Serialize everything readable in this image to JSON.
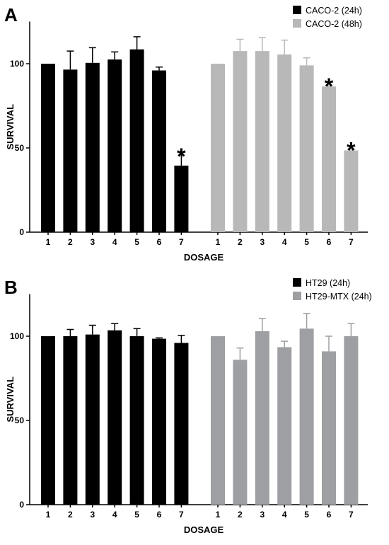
{
  "chart_data": [
    {
      "panel": "A",
      "type": "bar",
      "xlabel": "DOSAGE",
      "ylabel": "SURVIVAL",
      "ylim": [
        0,
        125
      ],
      "yticks": [
        0,
        50,
        100
      ],
      "grid": false,
      "legend_position": "top-right",
      "categories": [
        "1",
        "2",
        "3",
        "4",
        "5",
        "6",
        "7"
      ],
      "series": [
        {
          "name": "CACO-2 (24h)",
          "color": "#000000",
          "values": [
            100,
            96.5,
            100.5,
            102.5,
            108.5,
            96,
            39.5
          ],
          "errors": [
            0,
            11,
            9,
            4.5,
            7.5,
            2,
            8
          ],
          "significant": [
            false,
            false,
            false,
            false,
            false,
            false,
            true
          ]
        },
        {
          "name": "CACO-2 (48h)",
          "color": "#b8b8b8",
          "values": [
            100,
            107.5,
            107.5,
            105.5,
            99,
            86.5,
            48.5
          ],
          "errors": [
            0,
            7,
            8,
            8.5,
            4.5,
            2.5,
            2.5
          ],
          "significant": [
            false,
            false,
            false,
            false,
            false,
            true,
            true
          ]
        }
      ],
      "significance_marker": "*"
    },
    {
      "panel": "B",
      "type": "bar",
      "xlabel": "DOSAGE",
      "ylabel": "SURVIVAL",
      "ylim": [
        0,
        125
      ],
      "yticks": [
        0,
        50,
        100
      ],
      "grid": false,
      "legend_position": "top-right",
      "categories": [
        "1",
        "2",
        "3",
        "4",
        "5",
        "6",
        "7"
      ],
      "series": [
        {
          "name": "HT29 (24h)",
          "color": "#000000",
          "values": [
            100,
            100,
            101,
            103.5,
            100,
            98.5,
            96
          ],
          "errors": [
            0,
            4,
            5.5,
            4,
            4.5,
            0.5,
            4.5
          ],
          "significant": [
            false,
            false,
            false,
            false,
            false,
            false,
            false
          ]
        },
        {
          "name": "HT29-MTX (24h)",
          "color": "#9e9fa3",
          "values": [
            100,
            86,
            103,
            93.5,
            104.5,
            91,
            100
          ],
          "errors": [
            0,
            7,
            7.5,
            3.5,
            9,
            9,
            7.5
          ],
          "significant": [
            false,
            false,
            false,
            false,
            false,
            false,
            false
          ]
        }
      ],
      "significance_marker": "*"
    }
  ]
}
